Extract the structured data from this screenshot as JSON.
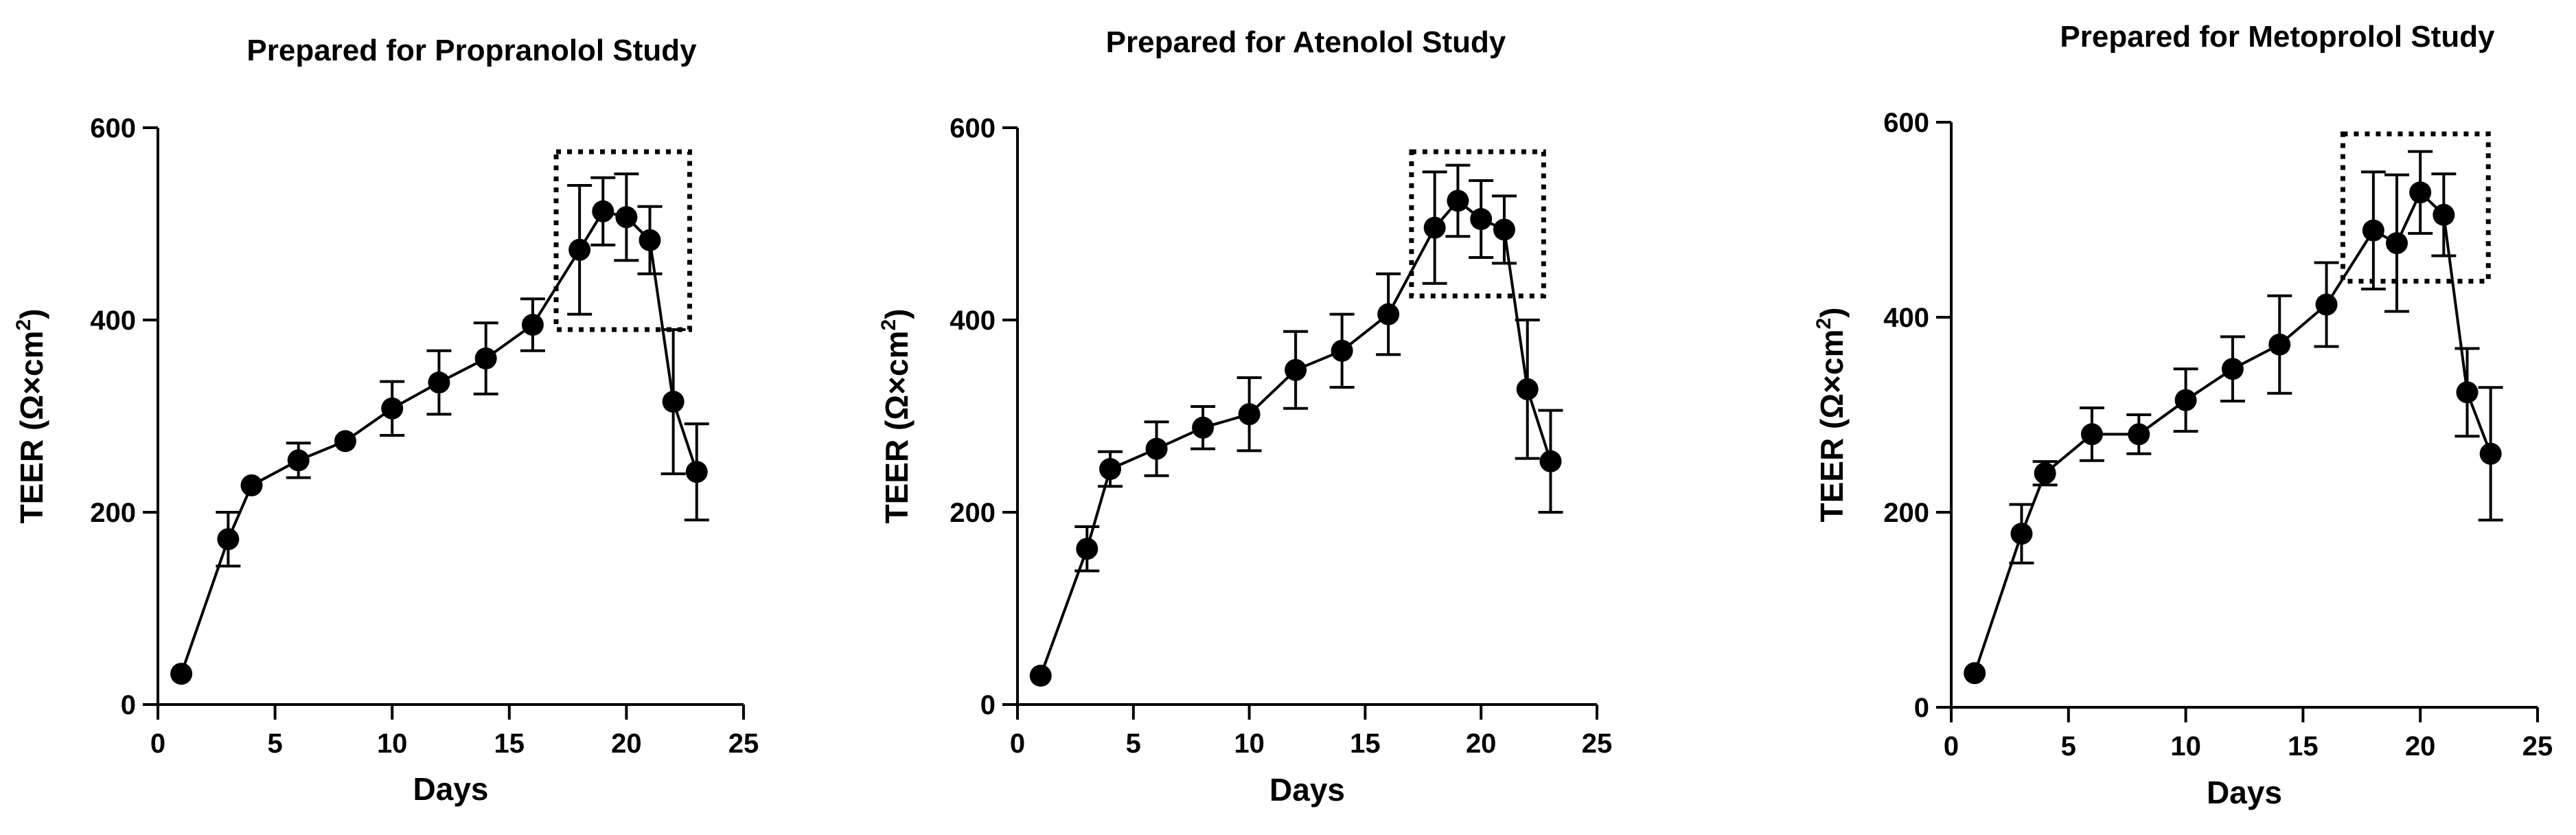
{
  "chart_data": [
    {
      "type": "line",
      "title": "Prepared for Propranolol Study",
      "xlabel": "Days",
      "ylabel": "TEER (Ω×cm",
      "ylabel_sup": "2",
      "ylabel_close": ")",
      "xlim": [
        0,
        25
      ],
      "ylim": [
        0,
        600
      ],
      "xticks": [
        0,
        5,
        10,
        15,
        20,
        25
      ],
      "yticks": [
        0,
        200,
        400,
        600
      ],
      "x": [
        1,
        3,
        4,
        6,
        8,
        10,
        12,
        14,
        16,
        18,
        19,
        20,
        21,
        22,
        23
      ],
      "y": [
        32,
        172,
        228,
        254,
        274,
        308,
        335,
        360,
        395,
        473,
        513,
        507,
        483,
        315,
        242
      ],
      "error": [
        0,
        28,
        0,
        18,
        0,
        28,
        33,
        37,
        27,
        67,
        35,
        45,
        35,
        75,
        50
      ],
      "highlight_box": {
        "x0": 17,
        "x1": 22.7,
        "y0": 390,
        "y1": 575
      }
    },
    {
      "type": "line",
      "title": "Prepared for Atenolol Study",
      "xlabel": "Days",
      "ylabel": "TEER (Ω×cm",
      "ylabel_sup": "2",
      "ylabel_close": ")",
      "xlim": [
        0,
        25
      ],
      "ylim": [
        0,
        600
      ],
      "xticks": [
        0,
        5,
        10,
        15,
        20,
        25
      ],
      "yticks": [
        0,
        200,
        400,
        600
      ],
      "x": [
        1,
        3,
        4,
        6,
        8,
        10,
        12,
        14,
        16,
        18,
        19,
        20,
        21,
        22,
        23
      ],
      "y": [
        30,
        162,
        245,
        266,
        288,
        302,
        348,
        368,
        406,
        496,
        524,
        505,
        494,
        328,
        253
      ],
      "error": [
        0,
        23,
        18,
        28,
        22,
        38,
        40,
        38,
        42,
        58,
        37,
        40,
        35,
        72,
        53
      ],
      "highlight_box": {
        "x0": 17,
        "x1": 22.7,
        "y0": 425,
        "y1": 575
      }
    },
    {
      "type": "line",
      "title": "Prepared for Metoprolol Study",
      "xlabel": "Days",
      "ylabel": "TEER (Ω×cm",
      "ylabel_sup": "2",
      "ylabel_close": ")",
      "xlim": [
        0,
        25
      ],
      "ylim": [
        0,
        600
      ],
      "xticks": [
        0,
        5,
        10,
        15,
        20,
        25
      ],
      "yticks": [
        0,
        200,
        400,
        600
      ],
      "x": [
        1,
        3,
        4,
        6,
        8,
        10,
        12,
        14,
        16,
        18,
        19,
        20,
        21,
        22,
        23
      ],
      "y": [
        35,
        178,
        240,
        280,
        280,
        315,
        347,
        372,
        413,
        489,
        476,
        528,
        505,
        323,
        260
      ],
      "error": [
        0,
        30,
        12,
        27,
        20,
        32,
        33,
        50,
        43,
        60,
        70,
        42,
        42,
        45,
        68
      ],
      "highlight_box": {
        "x0": 16.7,
        "x1": 22.9,
        "y0": 437,
        "y1": 588
      }
    }
  ]
}
